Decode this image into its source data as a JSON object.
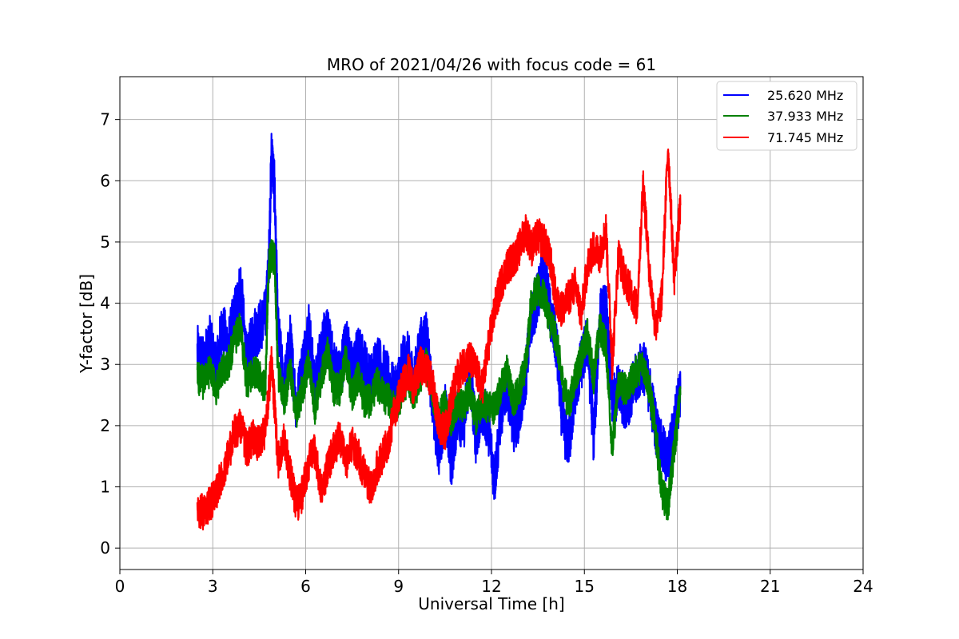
{
  "chart_data": {
    "type": "line",
    "title": "MRO of 2021/04/26 with focus code = 61",
    "xlabel": "Universal Time [h]",
    "ylabel": "Y-factor [dB]",
    "xlim": [
      0,
      24
    ],
    "ylim": [
      -0.35,
      7.7
    ],
    "xticks": [
      0,
      3,
      6,
      9,
      12,
      15,
      18,
      21,
      24
    ],
    "yticks": [
      0,
      1,
      2,
      3,
      4,
      5,
      6,
      7
    ],
    "grid": true,
    "legend_position": "top-right",
    "series": [
      {
        "name": "25.620 MHz",
        "color": "#0000ff",
        "x": [
          2.5,
          2.7,
          2.9,
          3.1,
          3.3,
          3.5,
          3.7,
          3.9,
          4.1,
          4.3,
          4.5,
          4.7,
          4.8,
          4.9,
          5.0,
          5.1,
          5.3,
          5.5,
          5.7,
          5.9,
          6.1,
          6.3,
          6.5,
          6.7,
          6.9,
          7.1,
          7.3,
          7.5,
          7.7,
          7.9,
          8.1,
          8.3,
          8.5,
          8.7,
          8.9,
          9.1,
          9.3,
          9.5,
          9.7,
          9.9,
          10.1,
          10.3,
          10.5,
          10.7,
          10.9,
          11.1,
          11.3,
          11.5,
          11.7,
          11.9,
          12.1,
          12.3,
          12.5,
          12.7,
          12.9,
          13.1,
          13.3,
          13.5,
          13.7,
          13.9,
          14.1,
          14.3,
          14.5,
          14.7,
          14.9,
          15.1,
          15.3,
          15.5,
          15.7,
          15.9,
          16.1,
          16.3,
          16.5,
          16.7,
          16.9,
          17.1,
          17.3,
          17.5,
          17.7,
          17.9,
          18.1
        ],
        "y": [
          3.2,
          3.0,
          3.4,
          2.9,
          3.6,
          3.3,
          3.8,
          4.3,
          3.0,
          3.5,
          3.6,
          3.8,
          4.5,
          6.5,
          5.8,
          3.6,
          2.6,
          3.4,
          2.3,
          3.0,
          3.6,
          2.6,
          3.3,
          3.5,
          3.0,
          2.8,
          3.4,
          2.9,
          3.2,
          3.0,
          2.7,
          3.1,
          2.9,
          2.7,
          2.5,
          3.0,
          3.1,
          2.7,
          3.3,
          3.5,
          2.3,
          1.6,
          2.3,
          1.4,
          2.2,
          2.0,
          2.9,
          1.8,
          2.3,
          2.0,
          1.1,
          2.2,
          2.7,
          2.0,
          2.2,
          2.8,
          3.8,
          4.1,
          4.6,
          3.8,
          3.3,
          2.0,
          1.7,
          2.6,
          3.0,
          3.4,
          1.8,
          3.8,
          3.9,
          2.3,
          2.6,
          2.4,
          2.5,
          2.8,
          3.0,
          2.6,
          2.0,
          1.6,
          1.4,
          2.0,
          2.6
        ]
      },
      {
        "name": "37.933 MHz",
        "color": "#008000",
        "x": [
          2.5,
          2.7,
          2.9,
          3.1,
          3.3,
          3.5,
          3.7,
          3.9,
          4.1,
          4.3,
          4.5,
          4.7,
          4.8,
          4.9,
          5.0,
          5.1,
          5.3,
          5.5,
          5.7,
          5.9,
          6.1,
          6.3,
          6.5,
          6.7,
          6.9,
          7.1,
          7.3,
          7.5,
          7.7,
          7.9,
          8.1,
          8.3,
          8.5,
          8.7,
          8.9,
          9.1,
          9.3,
          9.5,
          9.7,
          9.9,
          10.1,
          10.3,
          10.5,
          10.7,
          10.9,
          11.1,
          11.3,
          11.5,
          11.7,
          11.9,
          12.1,
          12.3,
          12.5,
          12.7,
          12.9,
          13.1,
          13.3,
          13.5,
          13.7,
          13.9,
          14.1,
          14.3,
          14.5,
          14.7,
          14.9,
          15.1,
          15.3,
          15.5,
          15.7,
          15.9,
          16.1,
          16.3,
          16.5,
          16.7,
          16.9,
          17.1,
          17.3,
          17.5,
          17.7,
          17.9,
          18.1
        ],
        "y": [
          2.8,
          2.7,
          2.9,
          2.6,
          2.9,
          3.0,
          3.4,
          3.6,
          2.7,
          2.9,
          2.8,
          2.6,
          4.6,
          4.8,
          4.7,
          2.9,
          2.4,
          2.9,
          2.2,
          2.6,
          3.0,
          2.3,
          2.8,
          3.2,
          2.6,
          2.6,
          3.1,
          2.5,
          2.8,
          2.4,
          2.4,
          2.7,
          2.5,
          2.4,
          2.3,
          2.5,
          2.8,
          2.5,
          2.8,
          3.0,
          2.5,
          2.1,
          2.4,
          2.1,
          2.4,
          2.3,
          2.6,
          2.1,
          2.4,
          2.3,
          2.3,
          2.6,
          2.9,
          2.4,
          2.6,
          3.0,
          4.1,
          4.2,
          4.1,
          3.7,
          3.4,
          2.7,
          2.3,
          2.8,
          3.1,
          3.5,
          2.8,
          3.6,
          3.3,
          1.6,
          2.7,
          2.6,
          2.7,
          2.9,
          3.0,
          2.6,
          1.9,
          0.9,
          0.7,
          1.6,
          2.5
        ]
      },
      {
        "name": "71.745 MHz",
        "color": "#ff0000",
        "x": [
          2.5,
          2.7,
          2.9,
          3.1,
          3.3,
          3.5,
          3.7,
          3.9,
          4.1,
          4.3,
          4.5,
          4.7,
          4.9,
          5.1,
          5.3,
          5.5,
          5.7,
          5.9,
          6.1,
          6.3,
          6.5,
          6.7,
          6.9,
          7.1,
          7.3,
          7.5,
          7.7,
          7.9,
          8.1,
          8.3,
          8.5,
          8.7,
          8.9,
          9.1,
          9.3,
          9.5,
          9.7,
          9.9,
          10.1,
          10.3,
          10.5,
          10.7,
          10.9,
          11.1,
          11.3,
          11.5,
          11.7,
          11.9,
          12.1,
          12.3,
          12.5,
          12.7,
          12.9,
          13.1,
          13.3,
          13.5,
          13.7,
          13.9,
          14.1,
          14.3,
          14.5,
          14.7,
          14.9,
          15.1,
          15.3,
          15.5,
          15.7,
          15.9,
          16.1,
          16.3,
          16.5,
          16.7,
          16.9,
          17.1,
          17.3,
          17.5,
          17.7,
          17.9,
          18.1
        ],
        "y": [
          0.6,
          0.6,
          0.7,
          0.9,
          1.2,
          1.5,
          1.9,
          2.0,
          1.6,
          1.8,
          1.7,
          1.9,
          3.1,
          1.4,
          1.8,
          1.2,
          0.7,
          0.9,
          1.4,
          1.6,
          0.9,
          1.3,
          1.6,
          1.8,
          1.4,
          1.7,
          1.5,
          1.2,
          1.0,
          1.3,
          1.5,
          1.8,
          2.3,
          2.6,
          2.9,
          2.6,
          3.0,
          2.9,
          2.7,
          2.0,
          1.9,
          2.4,
          2.8,
          3.0,
          3.1,
          2.9,
          2.6,
          3.3,
          3.9,
          4.3,
          4.6,
          4.7,
          4.9,
          5.2,
          4.9,
          5.1,
          5.0,
          4.7,
          4.0,
          3.9,
          4.1,
          4.3,
          3.8,
          4.6,
          4.9,
          4.8,
          5.2,
          3.0,
          4.8,
          4.4,
          4.2,
          3.9,
          6.0,
          4.5,
          3.6,
          4.1,
          6.6,
          4.4,
          5.6
        ]
      }
    ]
  }
}
